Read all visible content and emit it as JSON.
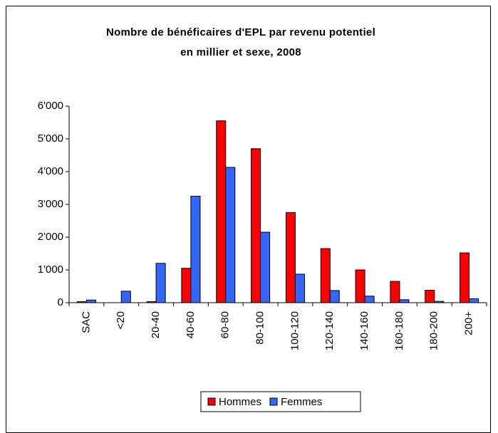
{
  "chart_data": {
    "type": "bar",
    "title": "Nombre de bénéficaires d'EPL par revenu potentiel en millier et sexe, 2008",
    "categories": [
      "SAC",
      "<20",
      "20-40",
      "40-60",
      "60-80",
      "80-100",
      "100-120",
      "120-140",
      "140-160",
      "160-180",
      "180-200",
      "200+"
    ],
    "series": [
      {
        "name": "Hommes",
        "color": "#ff0000",
        "values": [
          30,
          0,
          30,
          1050,
          5550,
          4700,
          2750,
          1650,
          1000,
          650,
          380,
          1520
        ]
      },
      {
        "name": "Femmes",
        "color": "#3366ff",
        "values": [
          80,
          350,
          1200,
          3250,
          4130,
          2150,
          870,
          370,
          200,
          90,
          40,
          120
        ]
      }
    ],
    "ylim": [
      0,
      6000
    ],
    "yticks": [
      0,
      {
        "value": 1000,
        "label": "1'000"
      },
      {
        "value": 2000,
        "label": "2'000"
      },
      {
        "value": 3000,
        "label": "3'000"
      },
      {
        "value": 4000,
        "label": "4'000"
      },
      {
        "value": 5000,
        "label": "5'000"
      },
      {
        "value": 6000,
        "label": "6'000"
      }
    ],
    "grid": false,
    "legend": "bottom"
  }
}
